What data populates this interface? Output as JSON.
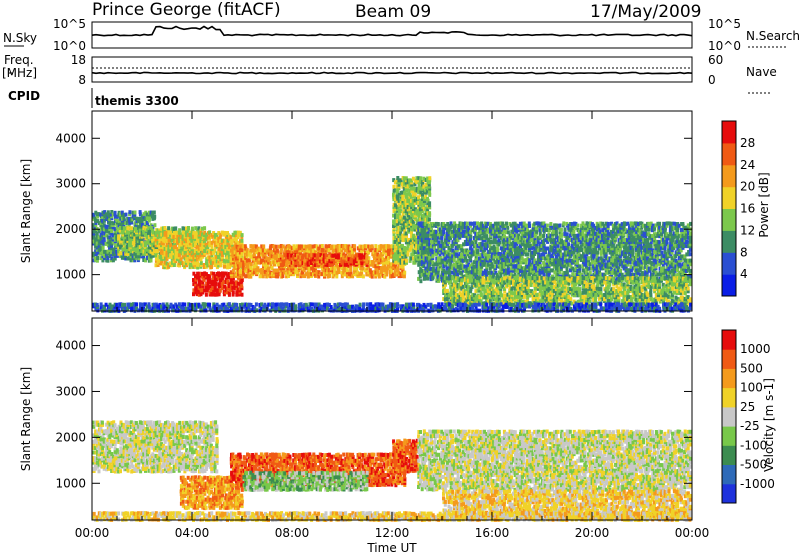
{
  "header": {
    "station": "Prince George (fitACF)",
    "beam": "Beam 09",
    "date": "17/May/2009"
  },
  "panel_labels": {
    "nsky": "N.Sky",
    "nsearch": "N.Search",
    "freq_line1": "Freq.",
    "freq_line2": "[MHz]",
    "nave": "Nave",
    "cpid": "CPID",
    "cpid_value": "themis 3300"
  },
  "noise_axis": {
    "left": [
      "10^5",
      "10^0"
    ],
    "right": [
      "10^5",
      "10^0"
    ]
  },
  "freq_axis": {
    "left": [
      "18",
      "8"
    ],
    "right": [
      "60",
      "0"
    ]
  },
  "chart_data": [
    {
      "type": "heatmap",
      "quantity": "Power",
      "ylabel": "Slant Range [km]",
      "xlabel": "",
      "ylim": [
        200,
        4600
      ],
      "yticks": [
        "1000",
        "2000",
        "3000",
        "4000"
      ],
      "xticks": [
        "00:00",
        "04:00",
        "08:00",
        "12:00",
        "16:00",
        "20:00",
        "00:00"
      ],
      "colorbar": {
        "label": "Power [dB]",
        "ticks": [
          "4",
          "8",
          "12",
          "16",
          "20",
          "24",
          "28"
        ],
        "colors": [
          "#0a1ee6",
          "#2a4fd2",
          "#3c8c64",
          "#7cc84c",
          "#f0d228",
          "#f49a1c",
          "#f05a14",
          "#e60c0c"
        ]
      },
      "regions": [
        {
          "t": [
            0.0,
            2.5
          ],
          "r": [
            1350,
            2450
          ],
          "level": 2
        },
        {
          "t": [
            1.0,
            4.5
          ],
          "r": [
            1500,
            2100
          ],
          "level": 3
        },
        {
          "t": [
            2.5,
            6.0
          ],
          "r": [
            1200,
            2000
          ],
          "level": 4
        },
        {
          "t": [
            4.0,
            6.0
          ],
          "r": [
            600,
            1100
          ],
          "level": 7
        },
        {
          "t": [
            5.5,
            12.5
          ],
          "r": [
            1000,
            1700
          ],
          "level": 5
        },
        {
          "t": [
            7.5,
            11.0
          ],
          "r": [
            1250,
            1500
          ],
          "level": 6
        },
        {
          "t": [
            12.0,
            13.5
          ],
          "r": [
            1300,
            3200
          ],
          "level": 3
        },
        {
          "t": [
            13.0,
            24.0
          ],
          "r": [
            900,
            2200
          ],
          "level": 2
        },
        {
          "t": [
            14.0,
            24.0
          ],
          "r": [
            400,
            1000
          ],
          "level": 3
        },
        {
          "t": [
            0.0,
            24.0
          ],
          "r": [
            200,
            420
          ],
          "level": 1
        }
      ]
    },
    {
      "type": "heatmap",
      "quantity": "Velocity",
      "ylabel": "Slant Range [km]",
      "xlabel": "Time UT",
      "ylim": [
        200,
        4600
      ],
      "yticks": [
        "1000",
        "2000",
        "3000",
        "4000"
      ],
      "xticks": [
        "00:00",
        "04:00",
        "08:00",
        "12:00",
        "16:00",
        "20:00",
        "00:00"
      ],
      "colorbar": {
        "label": "Velocity [m s-1]",
        "ticks": [
          "1000",
          "500",
          "100",
          "25",
          "-25",
          "-100",
          "-500",
          "-1000"
        ],
        "colors": [
          "#1e32dc",
          "#2e6ab8",
          "#3c8c50",
          "#78c84a",
          "#c8c8c8",
          "#f0d228",
          "#f49a1c",
          "#f05a14",
          "#e60c0c"
        ]
      },
      "regions": [
        {
          "t": [
            0.0,
            5.0
          ],
          "r": [
            1300,
            2400
          ],
          "level": 4
        },
        {
          "t": [
            3.5,
            6.0
          ],
          "r": [
            500,
            1200
          ],
          "level": 6
        },
        {
          "t": [
            5.5,
            12.5
          ],
          "r": [
            1000,
            1700
          ],
          "level": 7
        },
        {
          "t": [
            6.0,
            11.0
          ],
          "r": [
            900,
            1300
          ],
          "level": 3
        },
        {
          "t": [
            12.0,
            13.0
          ],
          "r": [
            1300,
            2000
          ],
          "level": 7
        },
        {
          "t": [
            13.0,
            24.0
          ],
          "r": [
            900,
            2200
          ],
          "level": 4
        },
        {
          "t": [
            14.0,
            24.0
          ],
          "r": [
            300,
            900
          ],
          "level": 5
        },
        {
          "t": [
            0.0,
            24.0
          ],
          "r": [
            200,
            420
          ],
          "level": 5
        }
      ]
    }
  ]
}
